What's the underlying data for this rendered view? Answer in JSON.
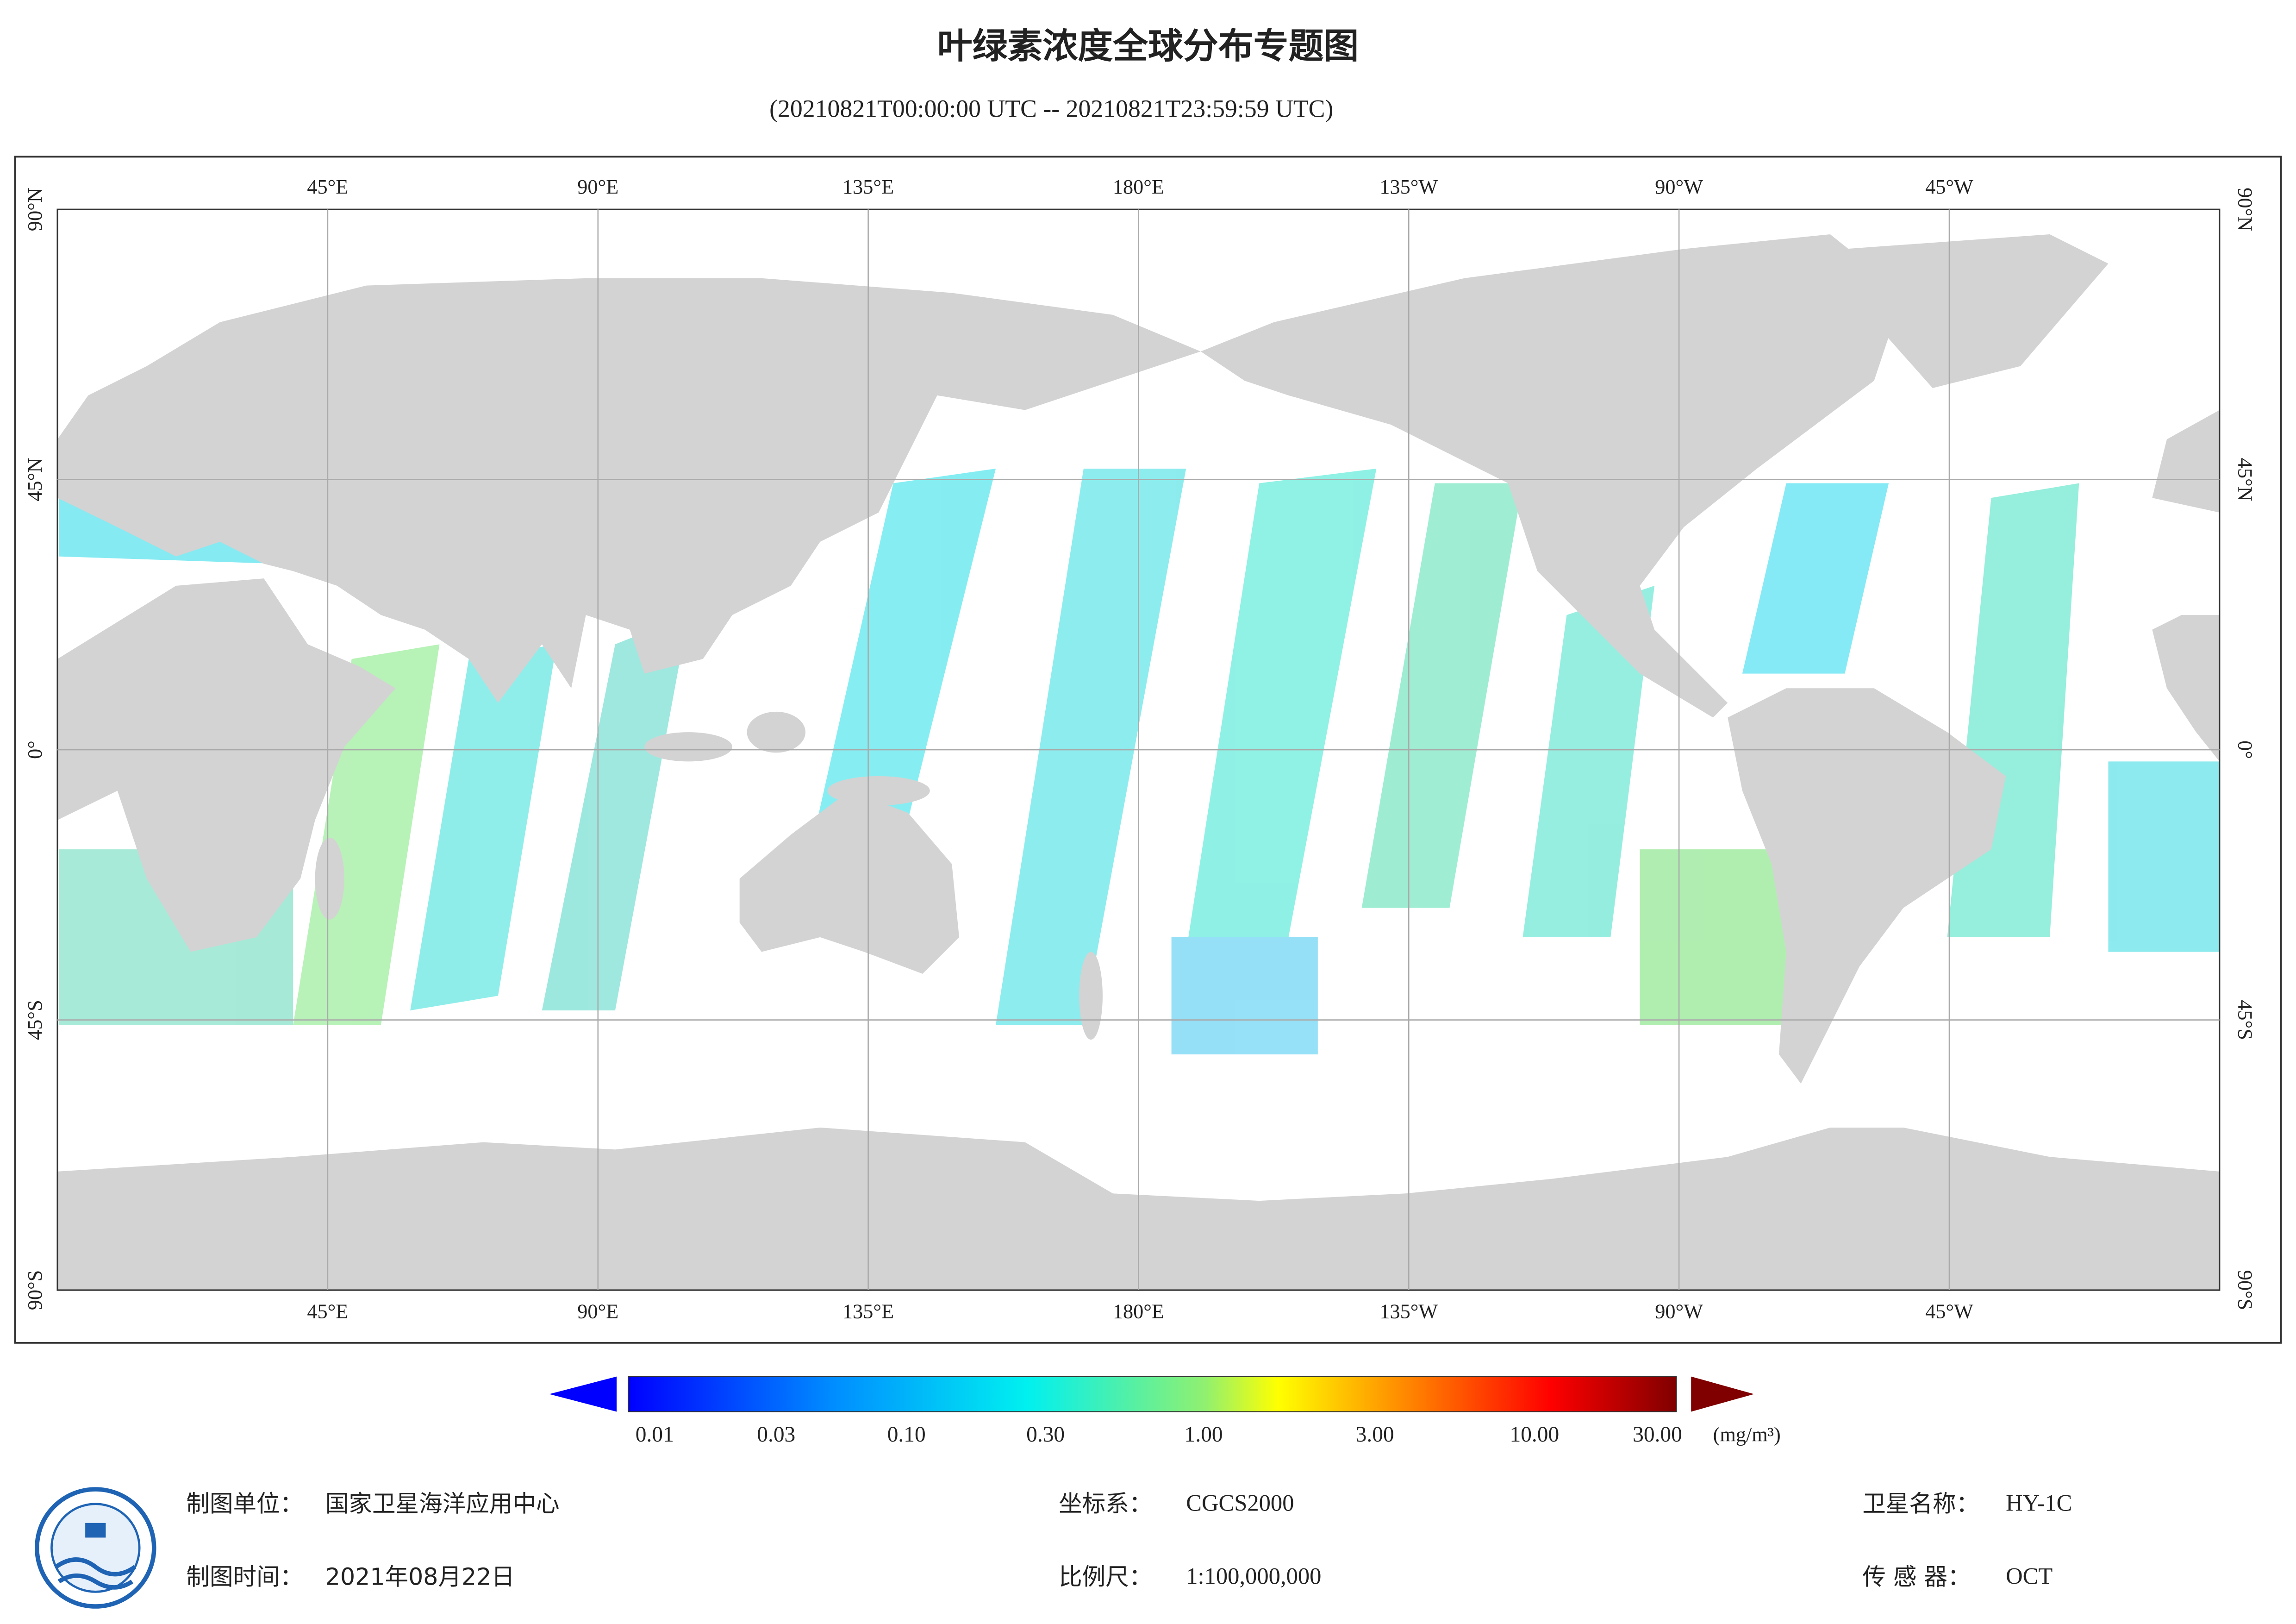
{
  "header": {
    "title": "叶绿素浓度全球分布专题图",
    "subtitle": "(20210821T00:00:00 UTC -- 20210821T23:59:59 UTC)"
  },
  "map": {
    "longitude_labels": [
      "45°E",
      "90°E",
      "135°E",
      "180°E",
      "135°W",
      "90°W",
      "45°W"
    ],
    "latitude_labels": [
      "90°N",
      "45°N",
      "0°",
      "45°S",
      "90°S"
    ]
  },
  "legend": {
    "ticks": [
      "0.01",
      "0.03",
      "0.10",
      "0.30",
      "1.00",
      "3.00",
      "10.00",
      "30.00"
    ],
    "unit": "(mg/m³)"
  },
  "footer": {
    "producer": {
      "label": "制图单位：",
      "value": "国家卫星海洋应用中心"
    },
    "date": {
      "label": "制图时间：",
      "value": "2021年08月22日"
    },
    "coordinates": {
      "label": "坐标系：",
      "value": "CGCS2000"
    },
    "scale": {
      "label": "比例尺：",
      "value": "1:100,000,000"
    },
    "satellite": {
      "label": "卫星名称：",
      "value": "HY-1C"
    },
    "sensor": {
      "label": "传 感 器：",
      "value": "OCT"
    }
  }
}
